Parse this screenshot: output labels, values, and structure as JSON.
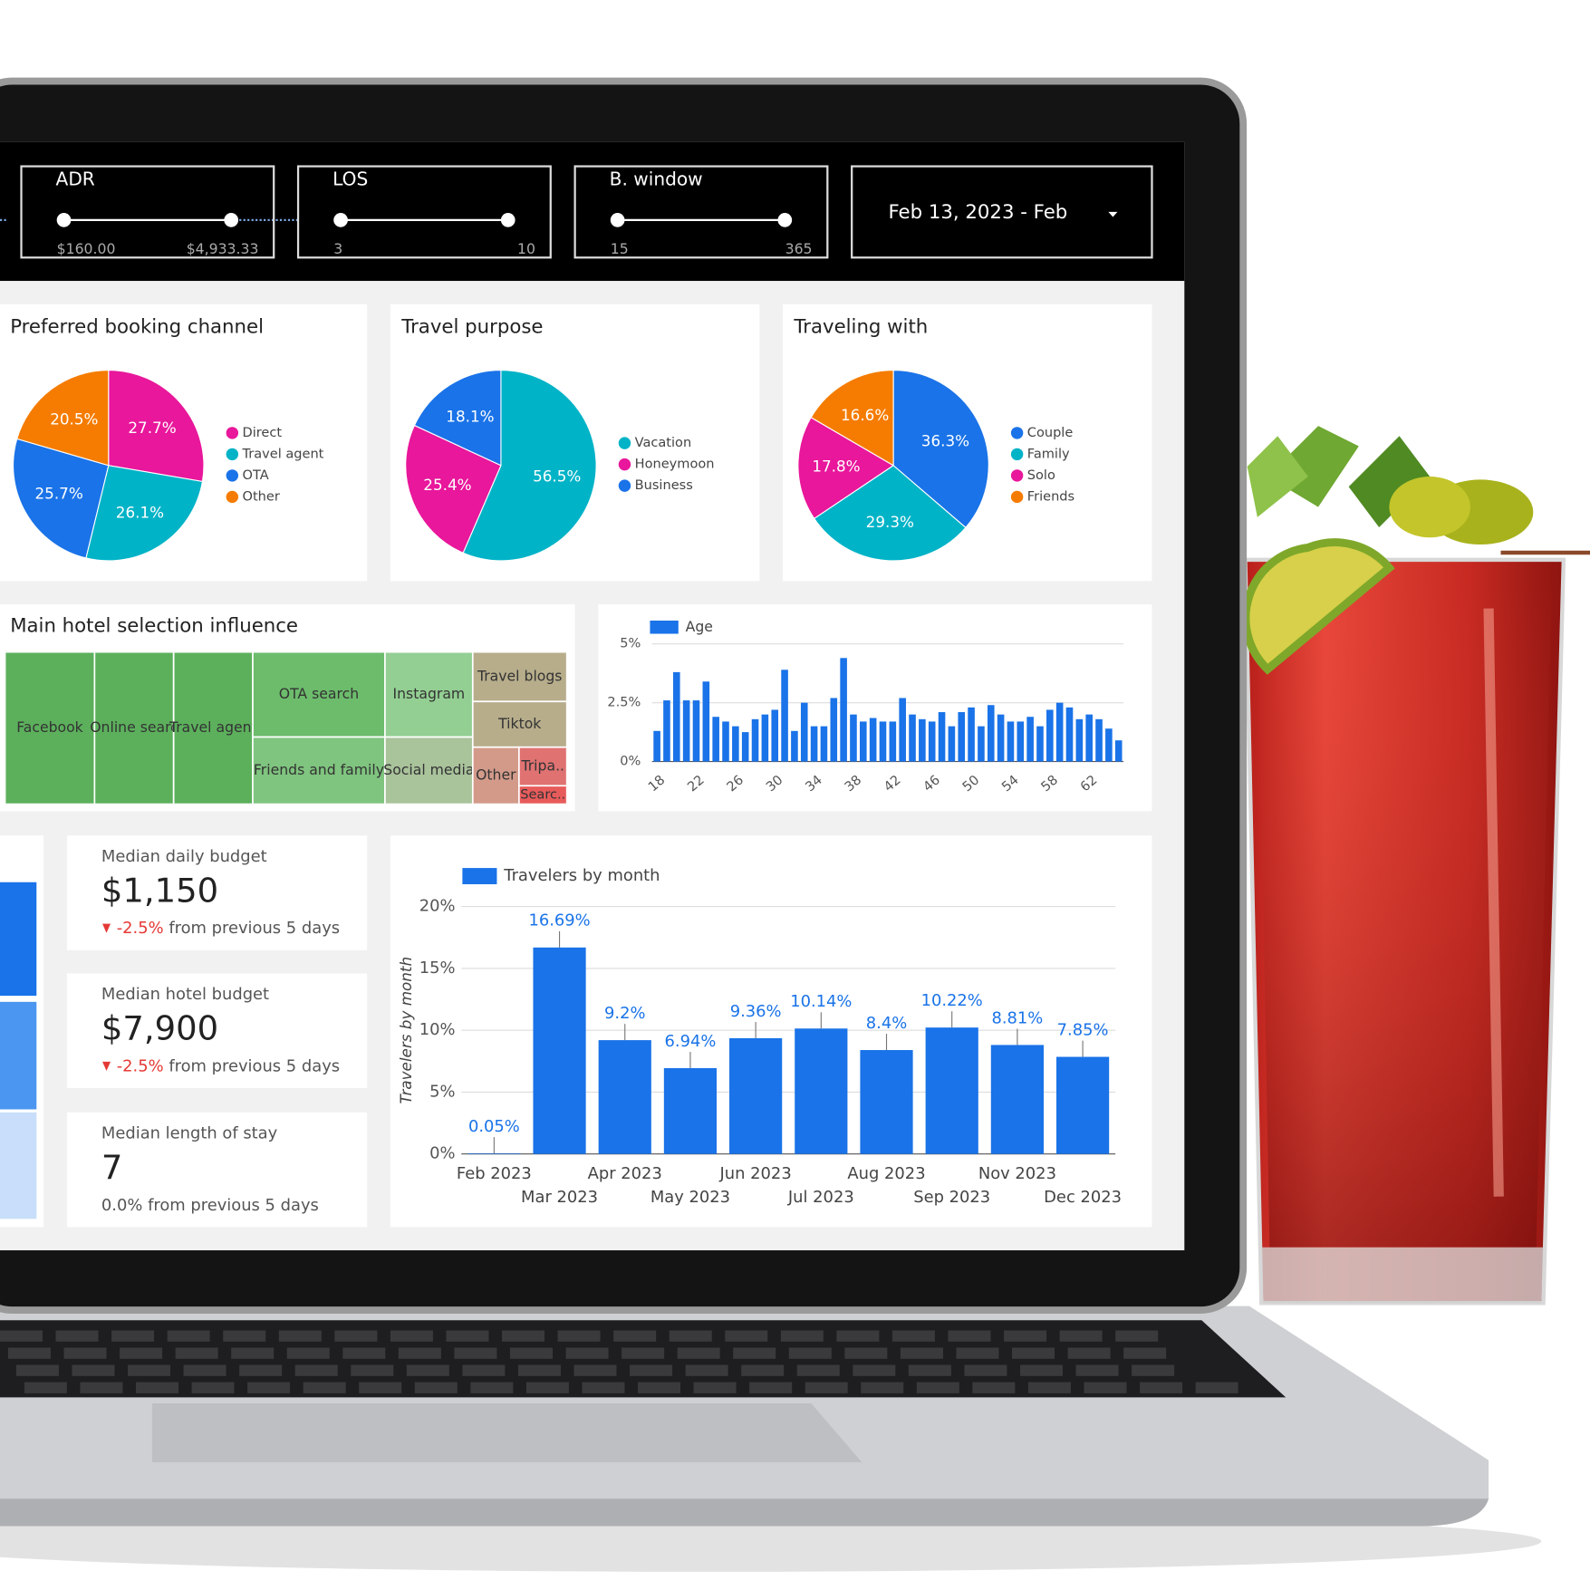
{
  "filters": [
    {
      "label": "ADR",
      "min": "$160.00",
      "max": "$4,933.33"
    },
    {
      "label": "LOS",
      "min": "3",
      "max": "10"
    },
    {
      "label": "B. window",
      "min": "15",
      "max": "365"
    }
  ],
  "date_range": "Feb 13, 2023 - Feb",
  "kpis": [
    {
      "label": "Median daily budget",
      "value": "$1,150",
      "change": "-2.5%",
      "comparison": "from previous 5 days"
    },
    {
      "label": "Median hotel budget",
      "value": "$7,900",
      "change": "-2.5%",
      "comparison": "from previous 5 days"
    },
    {
      "label": "Median length of stay",
      "value": "7",
      "change": "0.0%",
      "comparison": "from previous 5 days"
    }
  ],
  "chart_data": [
    {
      "type": "pie",
      "title": "Preferred booking channel",
      "categories": [
        "Direct",
        "Travel agent",
        "OTA",
        "Other"
      ],
      "values": [
        27.7,
        26.1,
        25.7,
        20.5
      ],
      "value_labels": [
        "27.7%",
        "26.1%",
        "25.7%",
        "20.5%"
      ],
      "colors": [
        "#e8179b",
        "#00b3c7",
        "#1a73e8",
        "#f57c00"
      ]
    },
    {
      "type": "pie",
      "title": "Travel purpose",
      "categories": [
        "Vacation",
        "Honeymoon",
        "Business"
      ],
      "values": [
        56.5,
        25.4,
        18.1
      ],
      "value_labels": [
        "56.5%",
        "25.4%",
        "18.1%"
      ],
      "colors": [
        "#00b3c7",
        "#e8179b",
        "#1a73e8"
      ]
    },
    {
      "type": "pie",
      "title": "Traveling with",
      "categories": [
        "Couple",
        "Family",
        "Solo",
        "Friends"
      ],
      "values": [
        36.3,
        29.3,
        17.8,
        16.6
      ],
      "value_labels": [
        "36.3%",
        "29.3%",
        "17.8%",
        "16.6%"
      ],
      "colors": [
        "#1a73e8",
        "#00b3c7",
        "#e8179b",
        "#f57c00"
      ]
    },
    {
      "type": "treemap",
      "title": "Main hotel selection influence",
      "categories": [
        "Facebook",
        "Online searc",
        "Travel agent",
        "OTA search",
        "Friends and family",
        "Instagram",
        "Social media",
        "Travel blogs",
        "Tiktok",
        "Other",
        "Tripa..",
        "Searc.."
      ],
      "values": [
        15.5,
        13.7,
        13.7,
        12.8,
        10.1,
        8.5,
        6.7,
        5.3,
        4.9,
        3.0,
        2.1,
        1.0
      ],
      "colors": [
        "#5cb05c",
        "#5cb05c",
        "#5cb05c",
        "#6cbc6c",
        "#7fc47f",
        "#93cf93",
        "#a9c39b",
        "#b7ad8b",
        "#b7ad8b",
        "#d39a8a",
        "#e07272",
        "#e85b5b"
      ]
    },
    {
      "type": "bar",
      "x": [
        18,
        19,
        20,
        21,
        22,
        23,
        24,
        25,
        26,
        27,
        28,
        29,
        30,
        31,
        32,
        33,
        34,
        35,
        36,
        37,
        38,
        39,
        40,
        41,
        42,
        43,
        44,
        45,
        46,
        47,
        48,
        49,
        50,
        51,
        52,
        53,
        54,
        55,
        56,
        57,
        58,
        59,
        60,
        61,
        62,
        63,
        64,
        65
      ],
      "series": [
        {
          "name": "Age",
          "color": "#1a73e8",
          "values": [
            1.3,
            2.6,
            3.8,
            2.6,
            2.6,
            3.4,
            1.9,
            1.7,
            1.5,
            1.25,
            1.8,
            2.0,
            2.2,
            3.9,
            1.3,
            2.5,
            1.5,
            1.5,
            2.7,
            4.4,
            2.0,
            1.7,
            1.85,
            1.7,
            1.7,
            2.7,
            2.0,
            1.8,
            1.7,
            2.1,
            1.5,
            2.1,
            2.3,
            1.5,
            2.4,
            2.0,
            1.7,
            1.7,
            1.9,
            1.5,
            2.2,
            2.5,
            2.3,
            1.8,
            2.0,
            1.8,
            1.4,
            0.9
          ]
        }
      ],
      "xlim": [
        17.5,
        65.5
      ],
      "xticks": [
        18,
        22,
        26,
        30,
        34,
        38,
        42,
        46,
        50,
        54,
        58,
        62
      ],
      "ylim": [
        0,
        5
      ],
      "yticks": [
        {
          "value": 0,
          "label": "0%"
        },
        {
          "value": 2.5,
          "label": "2.5%"
        },
        {
          "value": 5,
          "label": "5%"
        }
      ],
      "grid": true
    },
    {
      "type": "bar",
      "y_label": "Travelers by month",
      "categories": [
        "Feb 2023",
        "Mar 2023",
        "Apr 2023",
        "May 2023",
        "Jun 2023",
        "Jul 2023",
        "Aug 2023",
        "Sep 2023",
        "Nov 2023",
        "Dec 2023"
      ],
      "series": [
        {
          "name": "Travelers by month",
          "color": "#1a73e8",
          "values": [
            0.05,
            16.69,
            9.2,
            6.94,
            9.36,
            10.14,
            8.4,
            10.22,
            8.81,
            7.85
          ],
          "value_labels": [
            "0.05%",
            "16.69%",
            "9.2%",
            "6.94%",
            "9.36%",
            "10.14%",
            "8.4%",
            "10.22%",
            "8.81%",
            "7.85%"
          ]
        }
      ],
      "ylim": [
        0,
        20
      ],
      "yticks": [
        {
          "value": 0,
          "label": "0%"
        },
        {
          "value": 5,
          "label": "5%"
        },
        {
          "value": 10,
          "label": "10%"
        },
        {
          "value": 15,
          "label": "15%"
        },
        {
          "value": 20,
          "label": "20%"
        }
      ],
      "grid": true
    }
  ]
}
